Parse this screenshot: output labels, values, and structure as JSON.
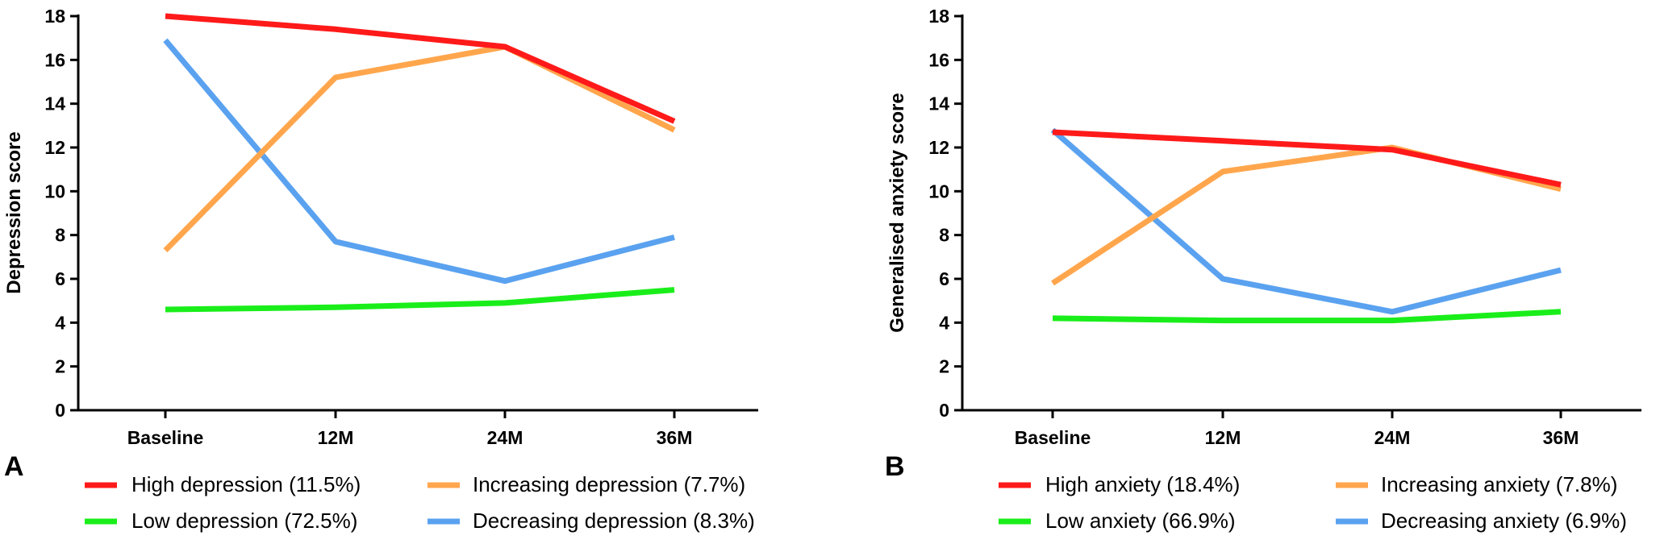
{
  "chart_data": [
    {
      "type": "line",
      "panel_label": "A",
      "ylabel": "Depression score",
      "xlabel": "",
      "categories": [
        "Baseline",
        "12M",
        "24M",
        "36M"
      ],
      "ylim": [
        0,
        18
      ],
      "yticks": [
        0,
        2,
        4,
        6,
        8,
        10,
        12,
        14,
        16,
        18
      ],
      "legend_position": "bottom",
      "series": [
        {
          "name": "High depression (11.5%)",
          "color": "#ff1a1a",
          "values": [
            18.0,
            17.4,
            16.6,
            13.2
          ]
        },
        {
          "name": "Increasing depression (7.7%)",
          "color": "#ffa64d",
          "values": [
            7.3,
            15.2,
            16.6,
            12.8
          ]
        },
        {
          "name": "Low depression (72.5%)",
          "color": "#1aee1a",
          "values": [
            4.6,
            4.7,
            4.9,
            5.5
          ]
        },
        {
          "name": "Decreasing depression (8.3%)",
          "color": "#5aa2f0",
          "values": [
            16.9,
            7.7,
            5.9,
            7.9
          ]
        }
      ]
    },
    {
      "type": "line",
      "panel_label": "B",
      "ylabel": "Generalised anxiety score",
      "xlabel": "",
      "categories": [
        "Baseline",
        "12M",
        "24M",
        "36M"
      ],
      "ylim": [
        0,
        18
      ],
      "yticks": [
        0,
        2,
        4,
        6,
        8,
        10,
        12,
        14,
        16,
        18
      ],
      "legend_position": "bottom",
      "series": [
        {
          "name": "High anxiety (18.4%)",
          "color": "#ff1a1a",
          "values": [
            12.7,
            12.3,
            11.9,
            10.3
          ]
        },
        {
          "name": "Increasing anxiety (7.8%)",
          "color": "#ffa64d",
          "values": [
            5.8,
            10.9,
            12.0,
            10.1
          ]
        },
        {
          "name": "Low anxiety (66.9%)",
          "color": "#1aee1a",
          "values": [
            4.2,
            4.1,
            4.1,
            4.5
          ]
        },
        {
          "name": "Decreasing anxiety (6.9%)",
          "color": "#5aa2f0",
          "values": [
            12.8,
            6.0,
            4.5,
            6.4
          ]
        }
      ]
    }
  ]
}
